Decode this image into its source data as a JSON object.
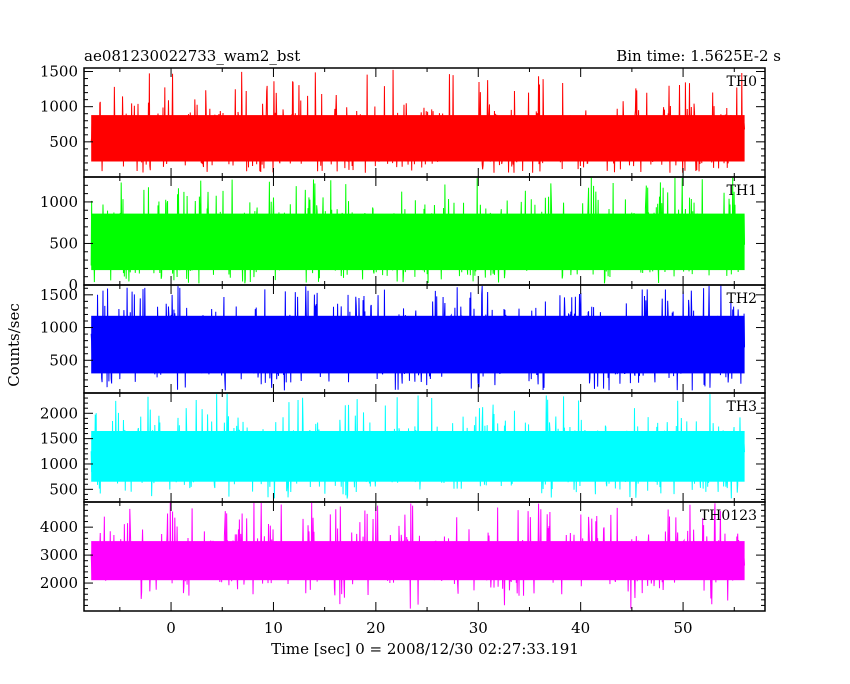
{
  "chart_data": {
    "type": "line",
    "title": "ae081230022733_wam2_bst",
    "subtitle": "Bin time: 1.5625E-2 s",
    "xlabel": "Time [sec] 0 = 2008/12/30 02:27:33.191",
    "ylabel": "Counts/sec",
    "xlim": [
      -8.5,
      58
    ],
    "x_data_range": [
      -7.8,
      56.0
    ],
    "x_ticks": [
      0,
      10,
      20,
      30,
      40,
      50
    ],
    "x_tick_labels": [
      "0",
      "10",
      "20",
      "30",
      "40",
      "50"
    ],
    "grid": false,
    "legend": "none",
    "series": [
      {
        "name": "TH0",
        "color": "#ff0000",
        "ylim": [
          0,
          1550
        ],
        "y_ticks": [
          500,
          1000,
          1500
        ],
        "y_tick_labels": [
          "500",
          "1000",
          "1500"
        ],
        "typical_low": 220,
        "typical_high": 880,
        "mean": 560,
        "min": 60,
        "max": 1540
      },
      {
        "name": "TH1",
        "color": "#00ff00",
        "ylim": [
          0,
          1300
        ],
        "y_ticks": [
          0,
          500,
          1000
        ],
        "y_tick_labels": [
          "0",
          "500",
          "1000"
        ],
        "typical_low": 180,
        "typical_high": 860,
        "mean": 520,
        "min": 20,
        "max": 1300
      },
      {
        "name": "TH2",
        "color": "#0000ff",
        "ylim": [
          0,
          1650
        ],
        "y_ticks": [
          500,
          1000,
          1500
        ],
        "y_tick_labels": [
          "500",
          "1000",
          "1500"
        ],
        "typical_low": 300,
        "typical_high": 1180,
        "mean": 740,
        "min": 40,
        "max": 1650
      },
      {
        "name": "TH3",
        "color": "#00ffff",
        "ylim": [
          250,
          2400
        ],
        "y_ticks": [
          500,
          1000,
          1500,
          2000
        ],
        "y_tick_labels": [
          "500",
          "1000",
          "1500",
          "2000"
        ],
        "typical_low": 650,
        "typical_high": 1650,
        "mean": 1150,
        "min": 300,
        "max": 2400
      },
      {
        "name": "TH0123",
        "color": "#ff00ff",
        "ylim": [
          1000,
          4900
        ],
        "y_ticks": [
          2000,
          3000,
          4000
        ],
        "y_tick_labels": [
          "2000",
          "3000",
          "4000"
        ],
        "typical_low": 2100,
        "typical_high": 3500,
        "mean": 2800,
        "min": 1050,
        "max": 4900
      }
    ]
  }
}
